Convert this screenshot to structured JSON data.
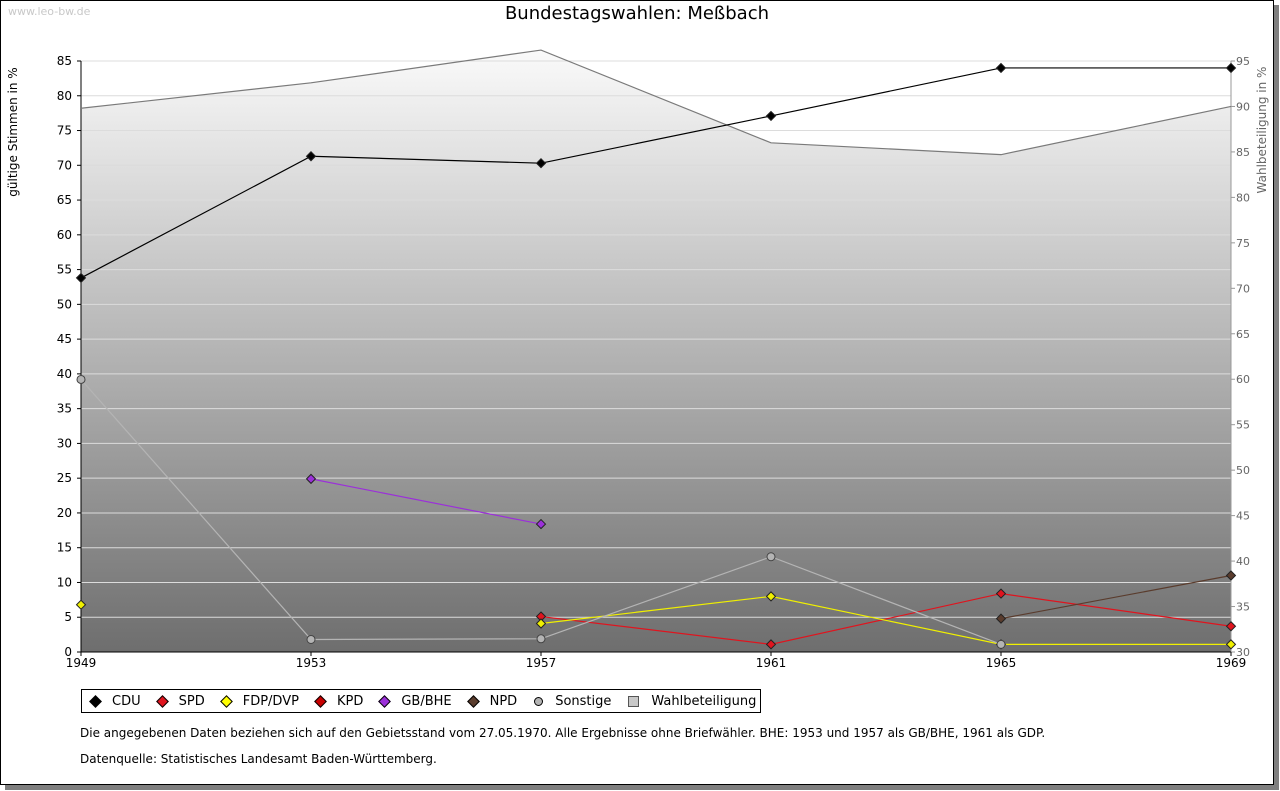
{
  "watermark": "www.leo-bw.de",
  "title": "Bundestagswahlen: Meßbach",
  "notes": {
    "line1": "Die angegebenen Daten beziehen sich auf den Gebietsstand vom 27.05.1970. Alle Ergebnisse ohne Briefwähler. BHE: 1953 und 1957 als GB/BHE, 1961 als GDP.",
    "line2": "Datenquelle: Statistisches Landesamt Baden-Württemberg."
  },
  "chart_data": {
    "type": "line",
    "title": "Bundestagswahlen: Meßbach",
    "x": [
      "1949",
      "1953",
      "1957",
      "1961",
      "1965",
      "1969"
    ],
    "ylabel": "gültige Stimmen in %",
    "y2label": "Wahlbeteiligung in %",
    "ylim": [
      0,
      85
    ],
    "y_ticks": [
      0,
      5,
      10,
      15,
      20,
      25,
      30,
      35,
      40,
      45,
      50,
      55,
      60,
      65,
      70,
      75,
      80,
      85
    ],
    "y2lim": [
      30,
      95
    ],
    "y2_ticks": [
      30,
      35,
      40,
      45,
      50,
      55,
      60,
      65,
      70,
      75,
      80,
      85,
      90,
      95
    ],
    "grid": true,
    "legend_position": "bottom",
    "series": [
      {
        "name": "CDU",
        "color": "#000000",
        "values": [
          53.8,
          71.3,
          70.3,
          77.1,
          84.0,
          84.0
        ]
      },
      {
        "name": "SPD",
        "color": "#e0141e",
        "values": [
          null,
          null,
          5.1,
          1.1,
          8.4,
          3.7
        ]
      },
      {
        "name": "FDP/DVP",
        "color": "#f0f000",
        "values": [
          6.8,
          null,
          4.1,
          8.0,
          1.1,
          1.1
        ]
      },
      {
        "name": "KPD",
        "color": "#c00000",
        "values": [
          null,
          null,
          null,
          null,
          null,
          null
        ]
      },
      {
        "name": "GB/BHE",
        "color": "#9b30d9",
        "values": [
          null,
          24.9,
          18.4,
          null,
          null,
          null
        ]
      },
      {
        "name": "NPD",
        "color": "#5a3c2d",
        "values": [
          null,
          null,
          null,
          null,
          4.8,
          11.0
        ]
      },
      {
        "name": "Sonstige",
        "color": "#b4b4b4",
        "values": [
          39.2,
          1.8,
          1.9,
          13.7,
          1.1,
          null
        ]
      },
      {
        "name": "Wahlbeteiligung",
        "color": "#808080",
        "axis": "right",
        "area": true,
        "values": [
          89.8,
          92.6,
          96.2,
          86.0,
          84.7,
          90.0
        ]
      }
    ]
  },
  "legend_colors": {
    "CDU": "#000000",
    "SPD": "#e0141e",
    "FDP/DVP": "#ffff00",
    "KPD": "#c80000",
    "GB/BHE": "#9b30d9",
    "NPD": "#5a3c2d",
    "Sonstige": "#b4b4b4"
  }
}
